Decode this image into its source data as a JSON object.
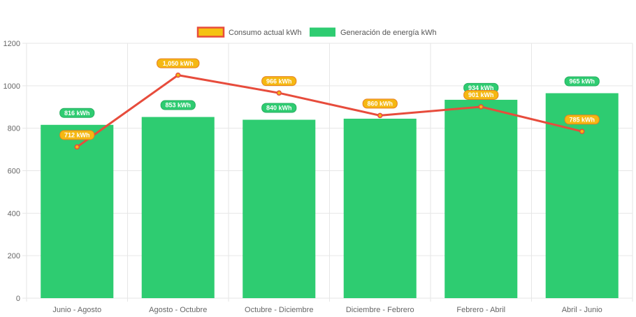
{
  "chart_data": {
    "type": "bar",
    "categories": [
      "Junio - Agosto",
      "Agosto - Octubre",
      "Octubre - Diciembre",
      "Diciembre - Febrero",
      "Febrero - Abril",
      "Abril - Junio"
    ],
    "series": [
      {
        "name": "Consumo actual kWh",
        "type": "line",
        "values": [
          712,
          1050,
          966,
          860,
          901,
          785
        ],
        "labels": [
          "712 kWh",
          "1,050 kWh",
          "966 kWh",
          "860 kWh",
          "901 kWh",
          "785 kWh"
        ],
        "color": "#e74c3c",
        "label_color": "#f5b812"
      },
      {
        "name": "Generación de energía kWh",
        "type": "bar",
        "values": [
          816,
          853,
          840,
          845,
          934,
          965
        ],
        "labels": [
          "816 kWh",
          "853 kWh",
          "840 kWh",
          "",
          "934 kWh",
          "965 kWh"
        ],
        "color": "#2ecc71"
      }
    ],
    "y_ticks": [
      "0",
      "200",
      "400",
      "600",
      "800",
      "1000",
      "1200"
    ],
    "ylim": [
      0,
      1200
    ],
    "grid": true,
    "legend_position": "top"
  }
}
